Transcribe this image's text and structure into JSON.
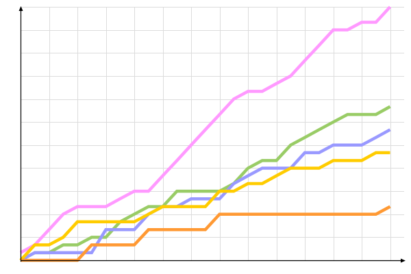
{
  "chart_data": {
    "type": "line",
    "title": "",
    "xlabel": "",
    "ylabel": "",
    "xlim": [
      0,
      13
    ],
    "ylim": [
      0,
      11
    ],
    "grid": true,
    "legend": "none",
    "x": [
      0,
      0.5,
      1,
      1.5,
      2,
      2.5,
      3,
      3.5,
      4,
      4.5,
      5,
      5.5,
      6,
      6.5,
      7,
      7.5,
      8,
      8.5,
      9,
      9.5,
      10,
      10.5,
      11,
      11.5,
      12,
      12.5,
      13
    ],
    "series": [
      {
        "color": "#ff99ff",
        "values": [
          0.33,
          0.67,
          1.33,
          2.0,
          2.33,
          2.33,
          2.33,
          2.67,
          3.0,
          3.0,
          3.67,
          4.33,
          5.0,
          5.67,
          6.33,
          7.0,
          7.33,
          7.33,
          7.67,
          8.0,
          8.67,
          9.33,
          10.0,
          10.0,
          10.33,
          10.33,
          11.0
        ]
      },
      {
        "color": "#99cc66",
        "values": [
          0,
          0.33,
          0.33,
          0.67,
          0.67,
          1.0,
          1.0,
          1.67,
          2.0,
          2.33,
          2.33,
          3.0,
          3.0,
          3.0,
          3.0,
          3.33,
          4.0,
          4.33,
          4.33,
          5.0,
          5.33,
          5.67,
          6.0,
          6.33,
          6.33,
          6.33,
          6.67
        ]
      },
      {
        "color": "#9999ff",
        "values": [
          0,
          0.33,
          0.33,
          0.33,
          0.33,
          0.33,
          1.33,
          1.33,
          1.33,
          2.0,
          2.33,
          2.33,
          2.67,
          2.67,
          2.67,
          3.33,
          3.67,
          4.0,
          4.0,
          4.0,
          4.67,
          4.67,
          5.0,
          5.0,
          5.0,
          5.33,
          5.67
        ]
      },
      {
        "color": "#ffcc00",
        "values": [
          0,
          0.67,
          0.67,
          1.0,
          1.67,
          1.67,
          1.67,
          1.67,
          1.67,
          2.0,
          2.33,
          2.33,
          2.33,
          2.33,
          3.0,
          3.0,
          3.33,
          3.33,
          3.67,
          4.0,
          4.0,
          4.0,
          4.33,
          4.33,
          4.33,
          4.67,
          4.67
        ]
      },
      {
        "color": "#ff9933",
        "values": [
          0,
          0,
          0,
          0,
          0,
          0.67,
          0.67,
          0.67,
          0.67,
          1.33,
          1.33,
          1.33,
          1.33,
          1.33,
          2.0,
          2.0,
          2.0,
          2.0,
          2.0,
          2.0,
          2.0,
          2.0,
          2.0,
          2.0,
          2.0,
          2.0,
          2.33
        ]
      }
    ]
  }
}
